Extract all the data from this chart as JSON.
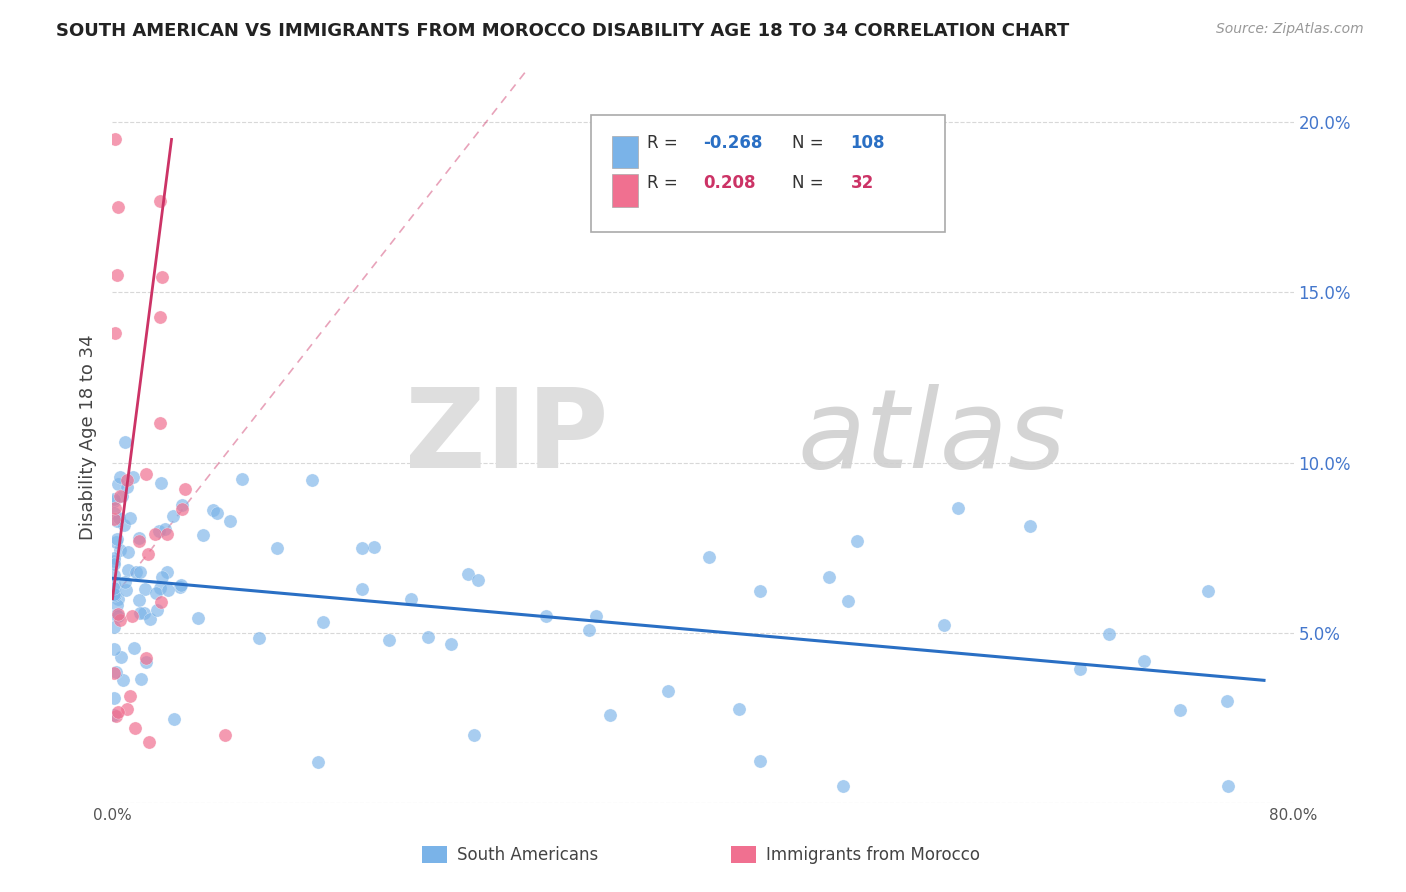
{
  "title": "SOUTH AMERICAN VS IMMIGRANTS FROM MOROCCO DISABILITY AGE 18 TO 34 CORRELATION CHART",
  "source": "Source: ZipAtlas.com",
  "ylabel": "Disability Age 18 to 34",
  "xlim": [
    0.0,
    0.8
  ],
  "ylim": [
    0.0,
    0.215
  ],
  "xticks": [
    0.0,
    0.1,
    0.2,
    0.3,
    0.4,
    0.5,
    0.6,
    0.7,
    0.8
  ],
  "yticks": [
    0.0,
    0.05,
    0.1,
    0.15,
    0.2
  ],
  "south_american_color": "#7ab3e8",
  "morocco_color": "#f07090",
  "trendline_blue_color": "#2a6fc4",
  "trendline_pink_color": "#cc3366",
  "background_color": "#ffffff",
  "grid_color": "#d8d8d8",
  "watermark_zip_color": "#d8d8d8",
  "watermark_atlas_color": "#c8c8c8",
  "legend_r1": "R = -0.268",
  "legend_n1": "N = 108",
  "legend_r2": "R =  0.208",
  "legend_n2": "N =  32",
  "legend_color1": "#2a6fc4",
  "legend_color2": "#cc3366",
  "legend_box_color1": "#7ab3e8",
  "legend_box_color2": "#f07090"
}
